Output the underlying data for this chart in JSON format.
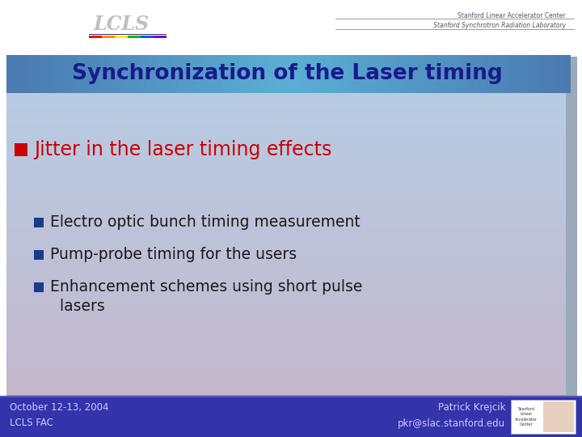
{
  "title": "Synchronization of the Laser timing",
  "title_color": "#1a1a8c",
  "title_bg_left": "#6fa8dc",
  "title_bg_right": "#4a86c8",
  "main_bg_color": "#b8cce4",
  "main_bg_bottom": "#c8b8cc",
  "header_text1": "Stanford Linear Accelerator Center",
  "header_text2": "Stanford Synchrotron Radiation Laboratory",
  "bullet1_text": "Jitter in the laser timing effects",
  "bullet1_color": "#cc0000",
  "bullet1_marker_color": "#cc0000",
  "subbullet_color": "#1a1a1a",
  "subbullet_marker_color": "#1a3a8c",
  "subbullet1": "Electro optic bunch timing measurement",
  "subbullet2": "Pump-probe timing for the users",
  "subbullet3a": "Enhancement schemes using short pulse",
  "subbullet3b": "  lasers",
  "footer_bg": "#3333aa",
  "footer_left1": "October 12-13, 2004",
  "footer_left2": "LCLS FAC",
  "footer_right1": "Patrick Krejcik",
  "footer_right2": "pkr@slac.stanford.edu",
  "footer_text_color": "#ccccff",
  "right_shadow_color": "#8899bb",
  "bottom_shadow_color": "#8899bb"
}
